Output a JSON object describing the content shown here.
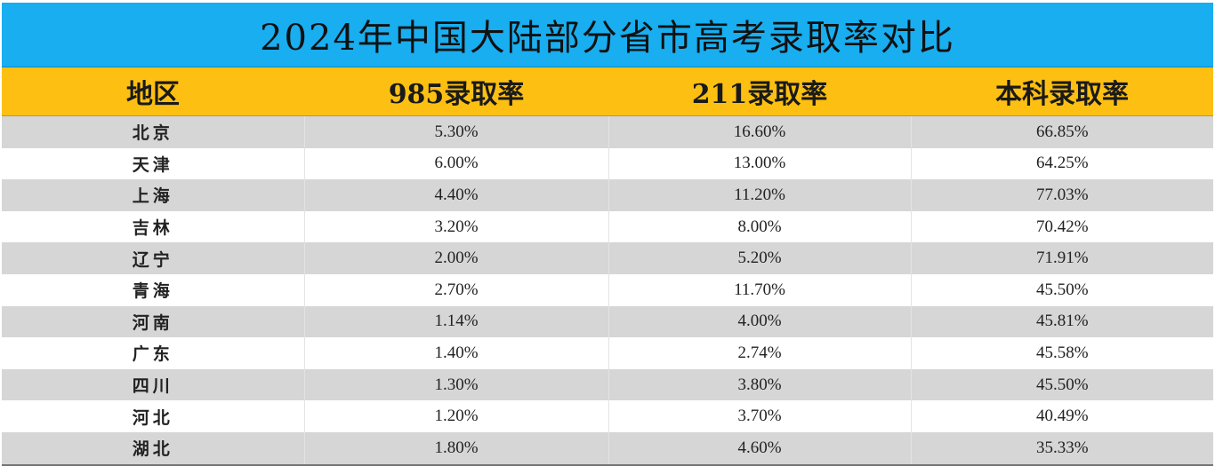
{
  "title": "2024年中国大陆部分省市高考录取率对比",
  "colors": {
    "title_bg": "#18aef0",
    "header_bg": "#fdc012",
    "row_stripe": "#d6d6d6"
  },
  "columns": [
    "地区",
    "985录取率",
    "211录取率",
    "本科录取率"
  ],
  "rows": [
    [
      "北京",
      "5.30%",
      "16.60%",
      "66.85%"
    ],
    [
      "天津",
      "6.00%",
      "13.00%",
      "64.25%"
    ],
    [
      "上海",
      "4.40%",
      "11.20%",
      "77.03%"
    ],
    [
      "吉林",
      "3.20%",
      "8.00%",
      "70.42%"
    ],
    [
      "辽宁",
      "2.00%",
      "5.20%",
      "71.91%"
    ],
    [
      "青海",
      "2.70%",
      "11.70%",
      "45.50%"
    ],
    [
      "河南",
      "1.14%",
      "4.00%",
      "45.81%"
    ],
    [
      "广东",
      "1.40%",
      "2.74%",
      "45.58%"
    ],
    [
      "四川",
      "1.30%",
      "3.80%",
      "45.50%"
    ],
    [
      "河北",
      "1.20%",
      "3.70%",
      "40.49%"
    ],
    [
      "湖北",
      "1.80%",
      "4.60%",
      "35.33%"
    ]
  ]
}
